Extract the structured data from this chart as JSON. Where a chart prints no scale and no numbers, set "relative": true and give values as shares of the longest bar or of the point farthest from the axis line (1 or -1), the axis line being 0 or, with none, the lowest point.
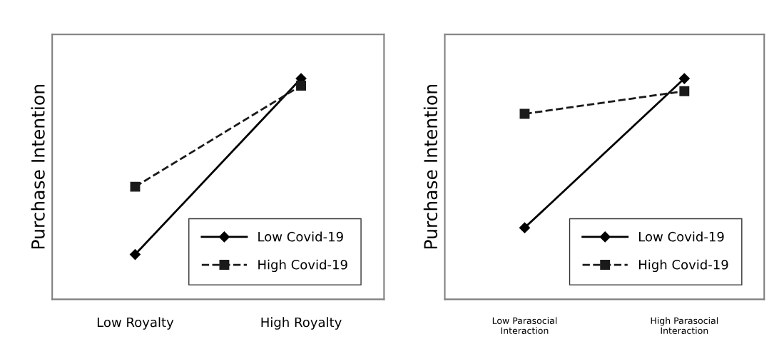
{
  "chart_data": [
    {
      "type": "line",
      "relative": true,
      "ylabel": "Purchase Intention",
      "categories": [
        "Low Royalty",
        "High Royalty"
      ],
      "legend": "bottom right",
      "grid": false,
      "series": [
        {
          "name": "Low Covid-19",
          "color": "#000000",
          "values": [
            0.203,
            1
          ],
          "marker": "diamond",
          "line_style": "solid"
        },
        {
          "name": "High Covid-19",
          "color": "#1a1a1a",
          "values": [
            0.51,
            0.968
          ],
          "marker": "square",
          "line_style": "dashed"
        }
      ]
    },
    {
      "type": "line",
      "relative": true,
      "ylabel": "Purchase Intention",
      "categories": [
        "Low Parasocial\nInteraction",
        "High Parasocial\nInteraction"
      ],
      "legend": "bottom right",
      "grid": false,
      "series": [
        {
          "name": "Low Covid-19",
          "color": "#000000",
          "values": [
            0.324,
            1
          ],
          "marker": "diamond",
          "line_style": "solid"
        },
        {
          "name": "High Covid-19",
          "color": "#1a1a1a",
          "values": [
            0.84,
            0.943
          ],
          "marker": "square",
          "line_style": "dashed"
        }
      ]
    }
  ]
}
